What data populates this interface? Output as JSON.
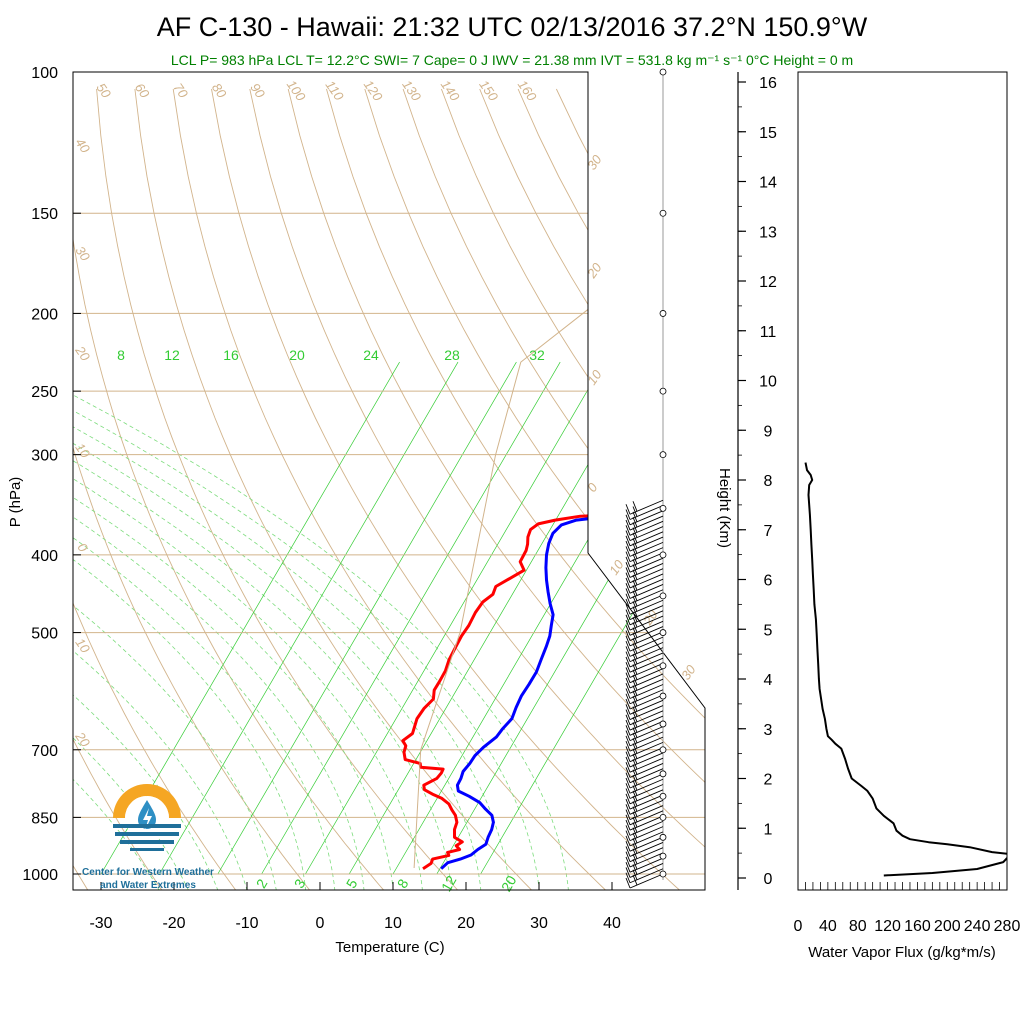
{
  "header": {
    "title": "AF C-130 - Hawaii: 21:32 UTC 02/13/2016  37.2°N 150.9°W",
    "subtitle": "LCL P= 983 hPa  LCL T= 12.2°C  SWI= 7  Cape= 0 J  IWV = 21.38 mm  IVT = 531.8 kg m⁻¹ s⁻¹  0°C Height = 0 m"
  },
  "logo": {
    "line1": "Center for Western Weather",
    "line2": "and Water Extremes"
  },
  "chart_data": [
    {
      "type": "line",
      "name": "skew-t",
      "xlabel": "Temperature (C)",
      "ylabel": "P (hPa)",
      "ylog": true,
      "xlim": [
        -34,
        46
      ],
      "ylim": [
        1050,
        100
      ],
      "x_ticks": [
        -30,
        -20,
        -10,
        0,
        10,
        20,
        30,
        40
      ],
      "y_ticks": [
        100,
        150,
        200,
        250,
        300,
        400,
        500,
        700,
        850,
        1000
      ],
      "theta_labels_top": [
        "50",
        "60",
        "70",
        "80",
        "90",
        "100",
        "110",
        "120",
        "130",
        "140",
        "150",
        "160"
      ],
      "theta_labels_left": [
        "40",
        "30",
        "20",
        "10",
        "0",
        "10",
        "20"
      ],
      "moist_labels": [
        "30",
        "20",
        "10",
        "0",
        "10",
        "20",
        "30"
      ],
      "mixing_ratio_labels_top": [
        "8",
        "12",
        "16",
        "20",
        "24",
        "28",
        "32"
      ],
      "mixing_ratio_labels_bottom": [
        "2",
        "3",
        "5",
        "8",
        "12",
        "20"
      ],
      "series": [
        {
          "name": "Temperature",
          "color": "#ff0000",
          "points": [
            [
              13.5,
              985
            ],
            [
              14,
              970
            ],
            [
              13.7,
              958
            ],
            [
              15.5,
              948
            ],
            [
              15,
              940
            ],
            [
              16.3,
              932
            ],
            [
              15.4,
              922
            ],
            [
              15.8,
              912
            ],
            [
              14.2,
              900
            ],
            [
              13.3,
              880
            ],
            [
              12.8,
              862
            ],
            [
              11.8,
              845
            ],
            [
              10.7,
              832
            ],
            [
              9.6,
              818
            ],
            [
              8,
              805
            ],
            [
              6.2,
              795
            ],
            [
              4.6,
              785
            ],
            [
              4,
              775
            ],
            [
              5,
              760
            ],
            [
              5,
              748
            ],
            [
              4.8,
              740
            ],
            [
              1.5,
              736
            ],
            [
              1,
              728
            ],
            [
              -1.5,
              720
            ],
            [
              -2.5,
              705
            ],
            [
              -3,
              692
            ],
            [
              -4,
              682
            ],
            [
              -3.5,
              668
            ],
            [
              -4,
              655
            ],
            [
              -4.6,
              640
            ],
            [
              -4.8,
              622
            ],
            [
              -4.6,
              605
            ],
            [
              -5.5,
              590
            ],
            [
              -5.8,
              575
            ],
            [
              -6.2,
              558
            ],
            [
              -7,
              540
            ],
            [
              -7.5,
              522
            ],
            [
              -8,
              505
            ],
            [
              -8.2,
              490
            ],
            [
              -8.8,
              472
            ],
            [
              -9,
              458
            ],
            [
              -8.5,
              448
            ],
            [
              -9,
              438
            ],
            [
              -8,
              428
            ],
            [
              -7,
              418
            ],
            [
              -8.5,
              408
            ],
            [
              -9,
              395
            ],
            [
              -9.5,
              388
            ],
            [
              -10.3,
              380
            ],
            [
              -10.8,
              372
            ],
            [
              -10.4,
              366
            ],
            [
              -8.5,
              362
            ],
            [
              -5.5,
              358
            ],
            [
              -2.5,
              357
            ],
            [
              -1.6,
              353
            ],
            [
              -3.5,
              346
            ],
            [
              -4.5,
              340
            ],
            [
              -4,
              336
            ]
          ]
        },
        {
          "name": "Dewpoint",
          "color": "#0000ff",
          "points": [
            [
              16,
              985
            ],
            [
              16.2,
              968
            ],
            [
              17.5,
              958
            ],
            [
              18.5,
              947
            ],
            [
              18.8,
              932
            ],
            [
              19.3,
              918
            ],
            [
              18.8,
              900
            ],
            [
              18.4,
              880
            ],
            [
              17.8,
              862
            ],
            [
              16.8,
              845
            ],
            [
              15.2,
              830
            ],
            [
              13.7,
              815
            ],
            [
              11.5,
              800
            ],
            [
              9.4,
              788
            ],
            [
              8.6,
              775
            ],
            [
              8.3,
              760
            ],
            [
              7.8,
              745
            ],
            [
              7.8,
              728
            ],
            [
              7.6,
              712
            ],
            [
              7.8,
              695
            ],
            [
              8.4,
              675
            ],
            [
              8.3,
              660
            ],
            [
              8.4,
              640
            ],
            [
              7.7,
              620
            ],
            [
              7.1,
              600
            ],
            [
              6.8,
              580
            ],
            [
              6.4,
              560
            ],
            [
              5.6,
              540
            ],
            [
              4.8,
              520
            ],
            [
              4.1,
              505
            ],
            [
              3.1,
              490
            ],
            [
              2.1,
              475
            ],
            [
              0.4,
              460
            ],
            [
              -1.2,
              445
            ],
            [
              -2.8,
              430
            ],
            [
              -4.3,
              415
            ],
            [
              -5.7,
              400
            ],
            [
              -6.7,
              387
            ],
            [
              -7.3,
              376
            ],
            [
              -7.1,
              367
            ],
            [
              -5.6,
              362
            ],
            [
              -3.6,
              360
            ],
            [
              -3.4,
              355
            ],
            [
              -3.8,
              348
            ],
            [
              -4.3,
              340
            ]
          ]
        },
        {
          "name": "Parcel",
          "color": "#d2b48c",
          "points": [
            [
              12.2,
              983
            ],
            [
              -0.5,
              700
            ],
            [
              -8.6,
              500
            ],
            [
              -24.2,
              300
            ],
            [
              -31.4,
              230
            ],
            [
              -13,
              95
            ]
          ]
        }
      ]
    },
    {
      "type": "wind-barbs",
      "name": "wind-profile",
      "pressure_levels": [
        1000,
        950,
        900,
        850,
        800,
        750,
        700,
        650,
        600,
        550,
        500,
        450,
        400,
        350
      ]
    },
    {
      "type": "line",
      "name": "water-vapor-flux",
      "xlabel": "Water Vapor Flux (g/kg*m/s)",
      "ylabel": "Height (Km)",
      "xlim": [
        0,
        280
      ],
      "ylim": [
        -0.2,
        16.3
      ],
      "x_ticks": [
        0,
        40,
        80,
        120,
        160,
        200,
        240,
        280
      ],
      "x_tick_labels": [
        "0",
        "40",
        "80",
        "120",
        "160",
        "200",
        "240",
        "280"
      ],
      "y_ticks": [
        0,
        1,
        2,
        3,
        4,
        5,
        6,
        7,
        8,
        9,
        10,
        11,
        12,
        13,
        14,
        15,
        16
      ],
      "series": [
        {
          "name": "",
          "color": "#000000",
          "points": [
            [
              115,
              0.05
            ],
            [
              180,
              0.1
            ],
            [
              240,
              0.18
            ],
            [
              275,
              0.32
            ],
            [
              285,
              0.48
            ],
            [
              260,
              0.52
            ],
            [
              230,
              0.62
            ],
            [
              200,
              0.68
            ],
            [
              175,
              0.72
            ],
            [
              150,
              0.78
            ],
            [
              140,
              0.85
            ],
            [
              132,
              0.95
            ],
            [
              128,
              1.1
            ],
            [
              115,
              1.25
            ],
            [
              105,
              1.4
            ],
            [
              100,
              1.6
            ],
            [
              93,
              1.75
            ],
            [
              85,
              1.85
            ],
            [
              72,
              2.0
            ],
            [
              67,
              2.2
            ],
            [
              63,
              2.4
            ],
            [
              58,
              2.6
            ],
            [
              50,
              2.7
            ],
            [
              45,
              2.78
            ],
            [
              40,
              2.85
            ],
            [
              38,
              3.0
            ],
            [
              36,
              3.2
            ],
            [
              33,
              3.4
            ],
            [
              31,
              3.6
            ],
            [
              29,
              3.8
            ],
            [
              28,
              4.0
            ],
            [
              27,
              4.3
            ],
            [
              26,
              4.6
            ],
            [
              25,
              4.9
            ],
            [
              24,
              5.2
            ],
            [
              22,
              5.5
            ],
            [
              21,
              5.8
            ],
            [
              20,
              6.1
            ],
            [
              19,
              6.4
            ],
            [
              18,
              6.7
            ],
            [
              17,
              7.0
            ],
            [
              16,
              7.3
            ],
            [
              15,
              7.5
            ],
            [
              14,
              7.7
            ],
            [
              15,
              7.9
            ],
            [
              19,
              8.0
            ],
            [
              17,
              8.1
            ],
            [
              12,
              8.2
            ],
            [
              10,
              8.35
            ]
          ]
        }
      ]
    }
  ]
}
